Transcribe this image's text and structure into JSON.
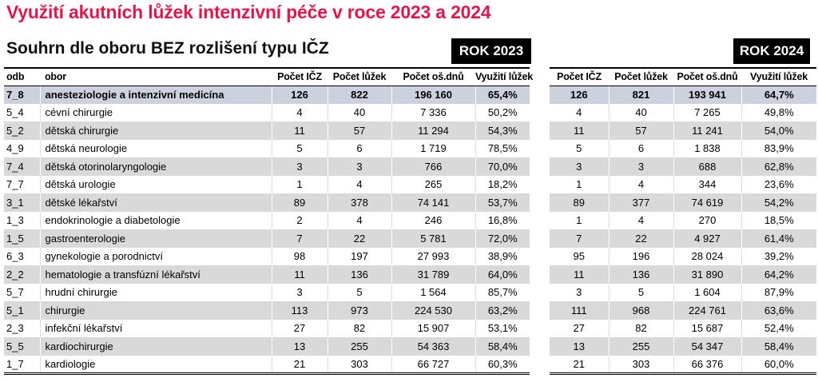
{
  "title": "Využití akutních lůžek intenzivní péče v roce 2023 a 2024",
  "subtitle": "Souhrn dle oboru BEZ rozlišení typu IČZ",
  "badges": {
    "y2023": "ROK 2023",
    "y2024": "ROK 2024"
  },
  "colors": {
    "title_red": "#e0174b",
    "badge_bg": "#000000",
    "badge_text": "#ffffff",
    "highlight_row_bg": "#cbd2dd",
    "stripe_row_bg": "#d9d9d9"
  },
  "table_2023": {
    "columns": [
      "odb",
      "obor",
      "Počet IČZ",
      "Počet lůžek",
      "Počet oš.dnů",
      "Využití lůžek"
    ]
  },
  "table_2024": {
    "columns": [
      "Počet IČZ",
      "Počet lůžek",
      "Počet oš.dnů",
      "Využití lůžek"
    ]
  },
  "rows": [
    {
      "odb": "7_8",
      "obor": "anesteziologie a intenzivní medicína",
      "highlight": true,
      "y2023": [
        "126",
        "822",
        "196 160",
        "65,4%"
      ],
      "y2024": [
        "126",
        "821",
        "193 941",
        "64,7%"
      ]
    },
    {
      "odb": "5_4",
      "obor": "cévní chirurgie",
      "y2023": [
        "4",
        "40",
        "7 336",
        "50,2%"
      ],
      "y2024": [
        "4",
        "40",
        "7 265",
        "49,8%"
      ]
    },
    {
      "odb": "5_2",
      "obor": "dětská chirurgie",
      "y2023": [
        "11",
        "57",
        "11 294",
        "54,3%"
      ],
      "y2024": [
        "11",
        "57",
        "11 241",
        "54,0%"
      ]
    },
    {
      "odb": "4_9",
      "obor": "dětská neurologie",
      "y2023": [
        "5",
        "6",
        "1 719",
        "78,5%"
      ],
      "y2024": [
        "5",
        "6",
        "1 838",
        "83,9%"
      ]
    },
    {
      "odb": "7_4",
      "obor": "dětská otorinolaryngologie",
      "y2023": [
        "3",
        "3",
        "766",
        "70,0%"
      ],
      "y2024": [
        "3",
        "3",
        "688",
        "62,8%"
      ]
    },
    {
      "odb": "7_7",
      "obor": "dětská urologie",
      "y2023": [
        "1",
        "4",
        "265",
        "18,2%"
      ],
      "y2024": [
        "1",
        "4",
        "344",
        "23,6%"
      ]
    },
    {
      "odb": "3_1",
      "obor": "dětské lékařství",
      "y2023": [
        "89",
        "378",
        "74 141",
        "53,7%"
      ],
      "y2024": [
        "89",
        "377",
        "74 619",
        "54,2%"
      ]
    },
    {
      "odb": "1_3",
      "obor": "endokrinologie a diabetologie",
      "y2023": [
        "2",
        "4",
        "246",
        "16,8%"
      ],
      "y2024": [
        "1",
        "4",
        "270",
        "18,5%"
      ]
    },
    {
      "odb": "1_5",
      "obor": "gastroenterologie",
      "y2023": [
        "7",
        "22",
        "5 781",
        "72,0%"
      ],
      "y2024": [
        "7",
        "22",
        "4 927",
        "61,4%"
      ]
    },
    {
      "odb": "6_3",
      "obor": "gynekologie a porodnictví",
      "y2023": [
        "98",
        "197",
        "27 993",
        "38,9%"
      ],
      "y2024": [
        "95",
        "196",
        "28 024",
        "39,2%"
      ]
    },
    {
      "odb": "2_2",
      "obor": "hematologie a transfúzní lékařství",
      "y2023": [
        "11",
        "136",
        "31 789",
        "64,0%"
      ],
      "y2024": [
        "11",
        "136",
        "31 890",
        "64,2%"
      ]
    },
    {
      "odb": "5_7",
      "obor": "hrudní chirurgie",
      "y2023": [
        "3",
        "5",
        "1 564",
        "85,7%"
      ],
      "y2024": [
        "3",
        "5",
        "1 604",
        "87,9%"
      ]
    },
    {
      "odb": "5_1",
      "obor": "chirurgie",
      "y2023": [
        "113",
        "973",
        "224 530",
        "63,2%"
      ],
      "y2024": [
        "111",
        "968",
        "224 761",
        "63,6%"
      ]
    },
    {
      "odb": "2_3",
      "obor": "infekční lékařství",
      "y2023": [
        "27",
        "82",
        "15 907",
        "53,1%"
      ],
      "y2024": [
        "27",
        "82",
        "15 687",
        "52,4%"
      ]
    },
    {
      "odb": "5_5",
      "obor": "kardiochirurgie",
      "y2023": [
        "13",
        "255",
        "54 363",
        "58,4%"
      ],
      "y2024": [
        "13",
        "255",
        "54 347",
        "58,4%"
      ]
    },
    {
      "odb": "1_7",
      "obor": "kardiologie",
      "y2023": [
        "21",
        "303",
        "66 727",
        "60,3%"
      ],
      "y2024": [
        "21",
        "303",
        "66 376",
        "60,0%"
      ]
    }
  ]
}
